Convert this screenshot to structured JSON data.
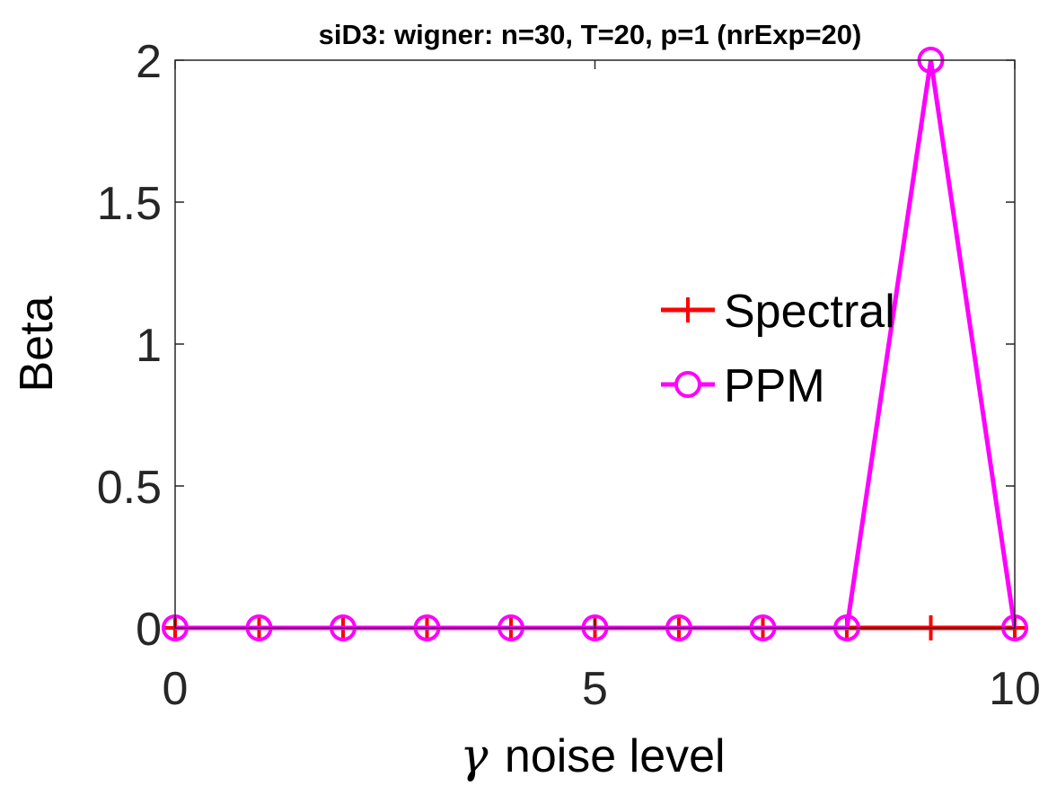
{
  "chart_data": {
    "type": "line",
    "title": "siD3: wigner: n=30, T=20, p=1 (nrExp=20)",
    "xlabel_symbol": "γ",
    "xlabel": "noise level",
    "ylabel": "Beta",
    "xlim": [
      0,
      10
    ],
    "ylim": [
      0,
      2
    ],
    "xticks": [
      0,
      5,
      10
    ],
    "xtick_labels": [
      "0",
      "5",
      "10"
    ],
    "yticks": [
      0,
      0.5,
      1,
      1.5,
      2
    ],
    "ytick_labels": [
      "0",
      "0.5",
      "1",
      "1.5",
      "2"
    ],
    "grid": false,
    "legend_position": "center-right",
    "x": [
      0,
      1,
      2,
      3,
      4,
      5,
      6,
      7,
      8,
      9,
      10
    ],
    "series": [
      {
        "name": "Spectral",
        "color": "#ff0000",
        "marker": "plus",
        "values": [
          0,
          0,
          0,
          0,
          0,
          0,
          0,
          0,
          0,
          0,
          0
        ]
      },
      {
        "name": "PPM",
        "color": "#ff00ff",
        "marker": "circle",
        "values": [
          0,
          0,
          0,
          0,
          0,
          0,
          0,
          0,
          0,
          2,
          0
        ]
      }
    ]
  }
}
